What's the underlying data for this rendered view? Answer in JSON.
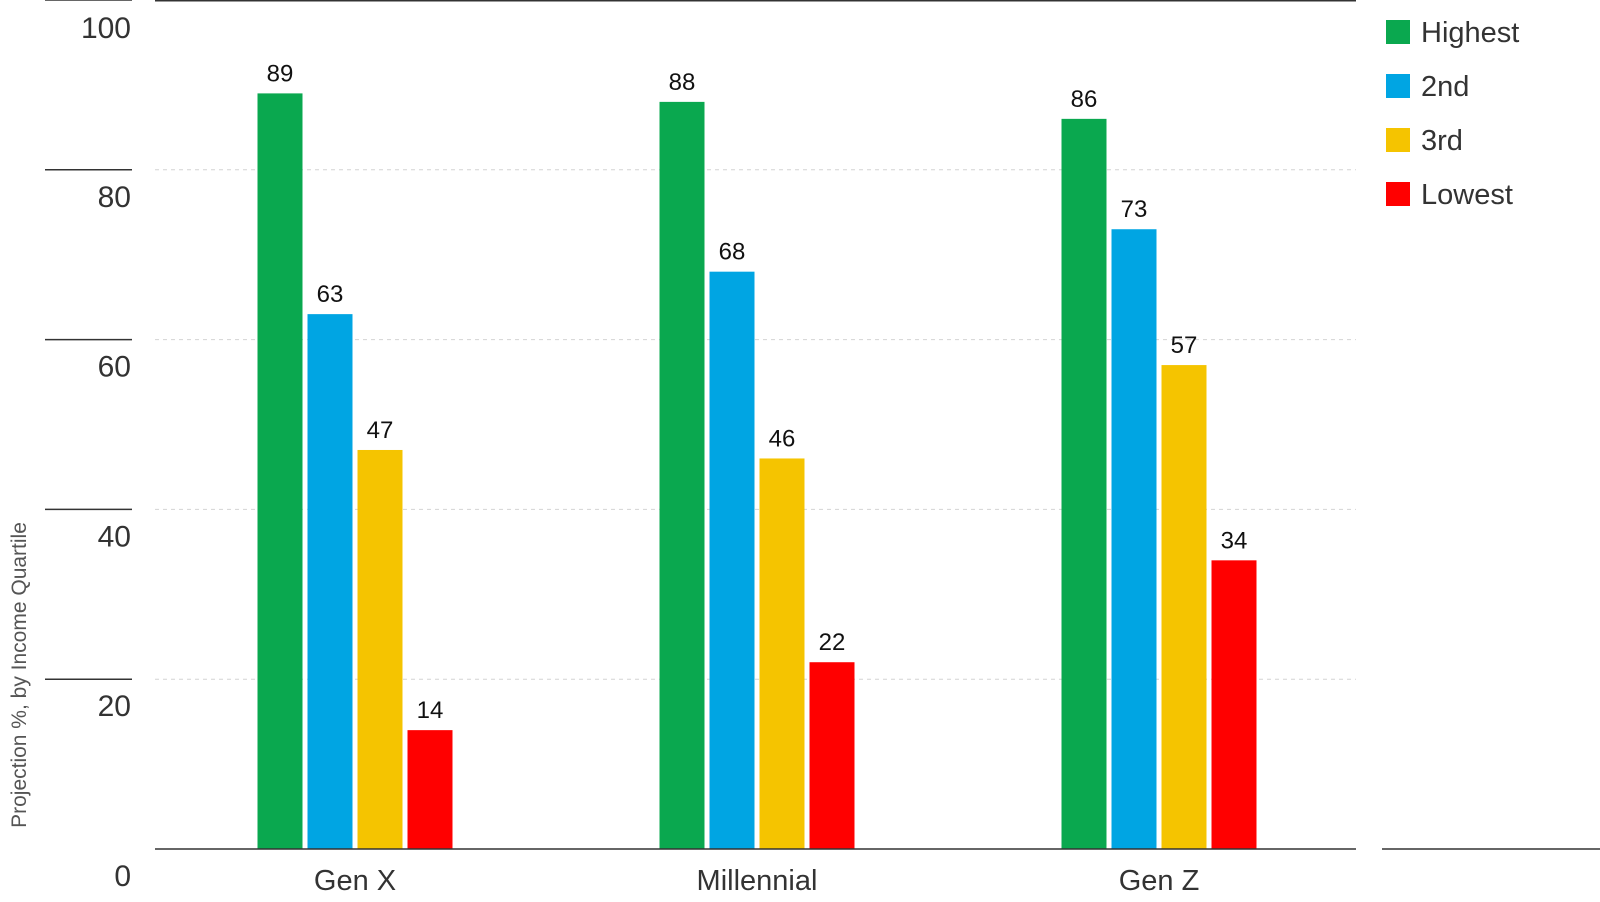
{
  "chart_data": {
    "type": "bar",
    "categories": [
      "Gen X",
      "Millennial",
      "Gen Z"
    ],
    "series": [
      {
        "name": "Highest",
        "color": "#0aa84f",
        "values": [
          89,
          88,
          86
        ]
      },
      {
        "name": "2nd",
        "color": "#00a5e3",
        "values": [
          63,
          68,
          73
        ]
      },
      {
        "name": "3rd",
        "color": "#f5c400",
        "values": [
          47,
          46,
          57
        ]
      },
      {
        "name": "Lowest",
        "color": "#ff0000",
        "values": [
          14,
          22,
          34
        ]
      }
    ],
    "ylabel": "Projection %, by Income Quartile",
    "xlabel": "",
    "ylim": [
      0,
      100
    ],
    "yticks": [
      0,
      20,
      40,
      60,
      80,
      100
    ],
    "grid": true,
    "legend_position": "top-right"
  }
}
